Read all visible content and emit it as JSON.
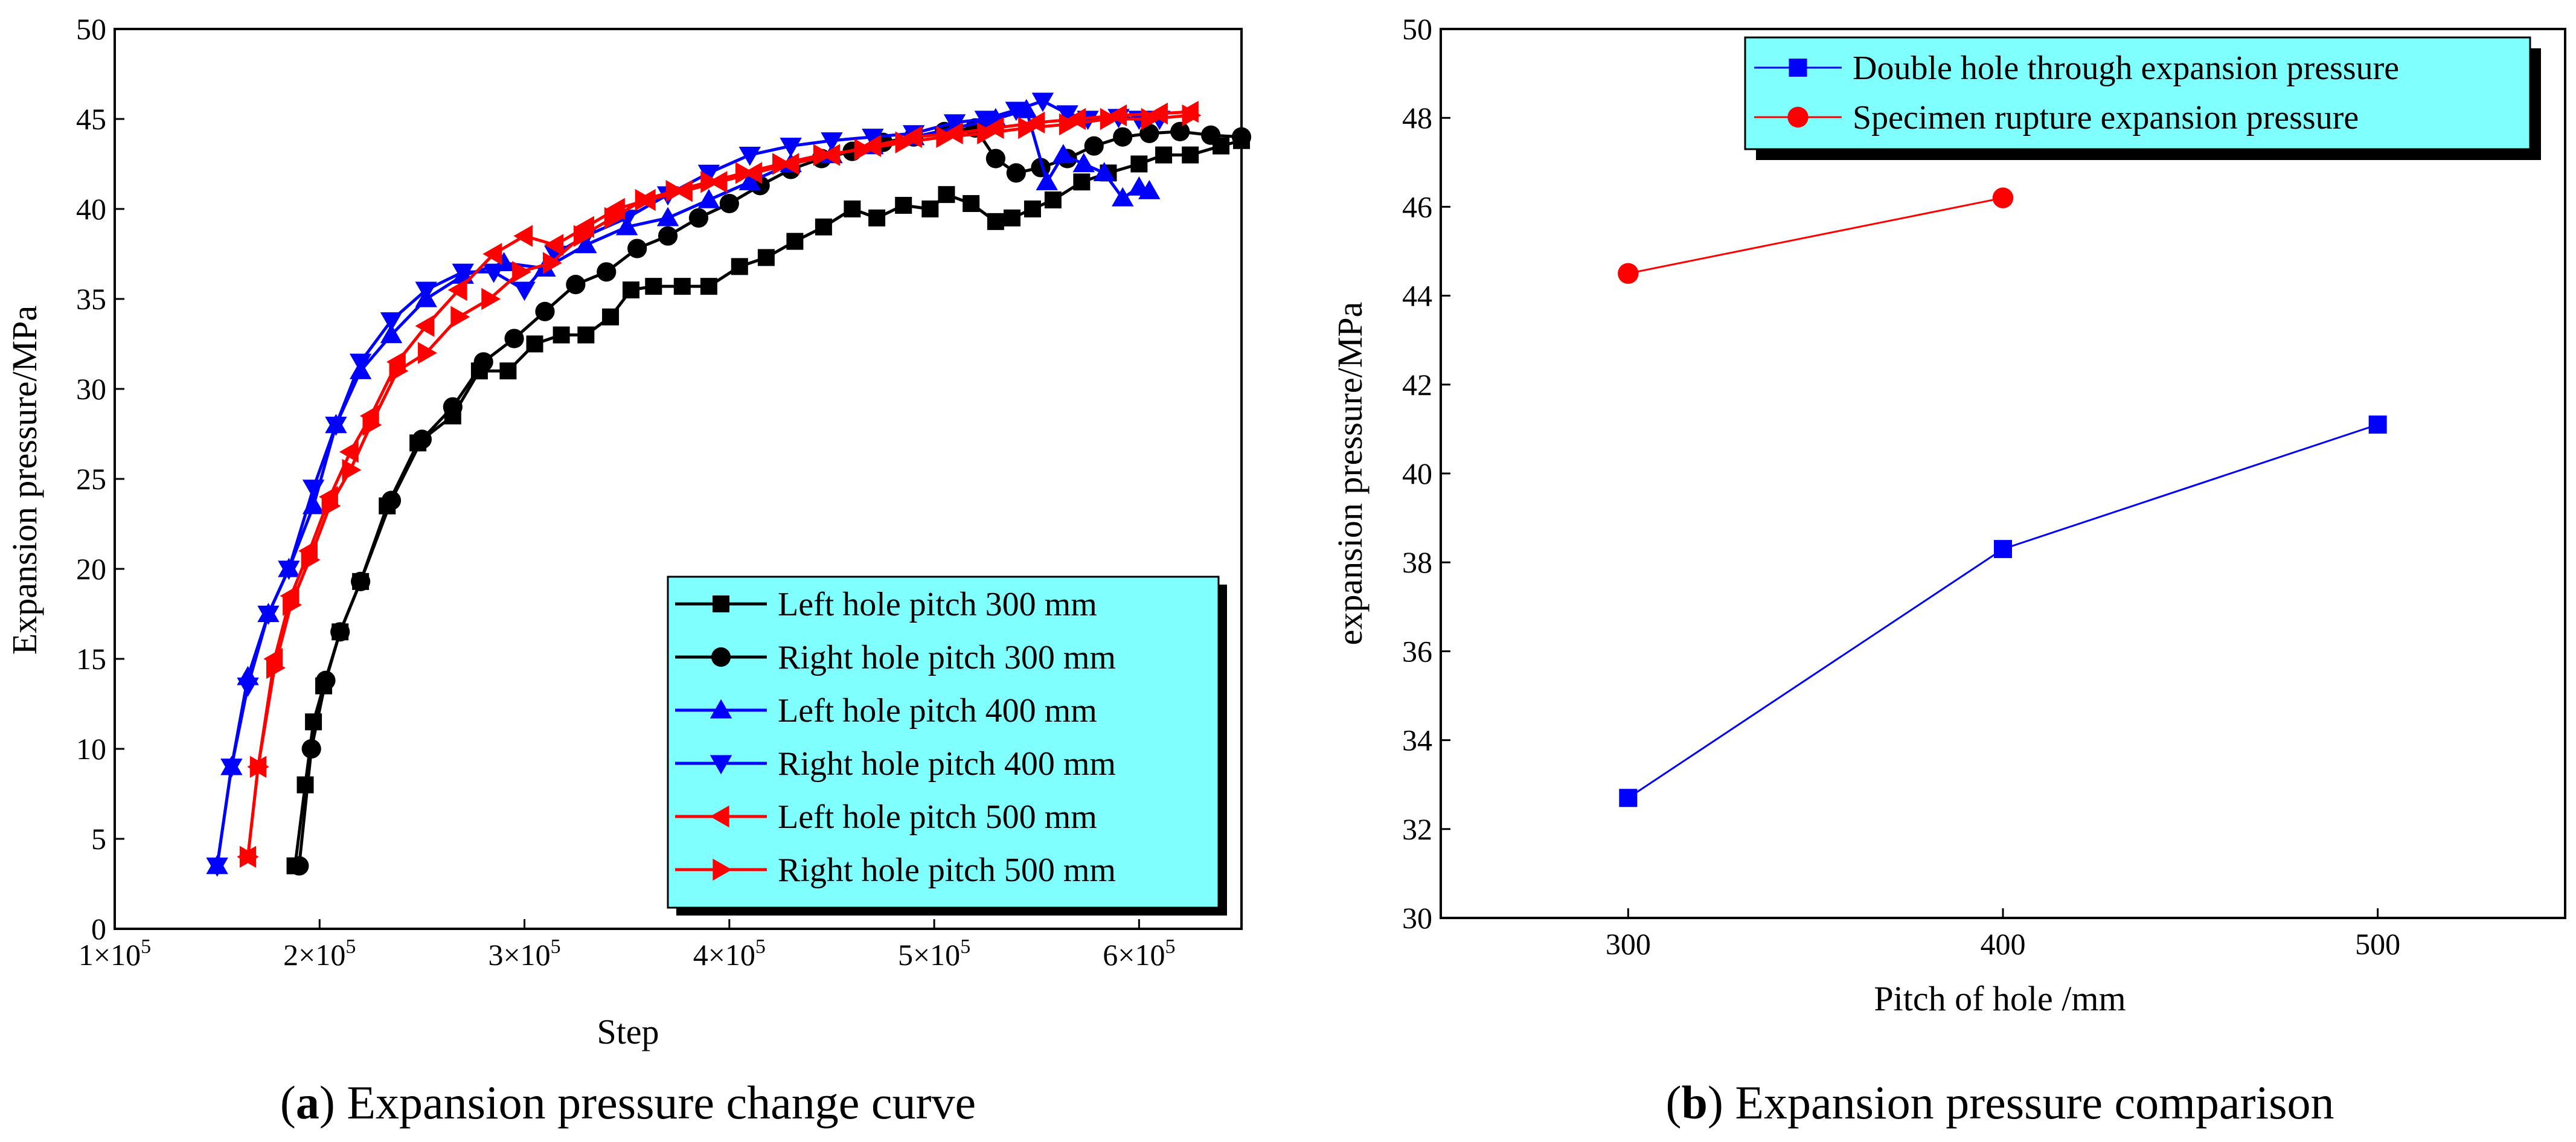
{
  "chart_data": [
    {
      "type": "line",
      "panel": "a",
      "caption_letter": "a",
      "caption_text": ") Expansion pressure change curve",
      "xlabel": "Step",
      "ylabel": "Expansion pressure/MPa",
      "xlim": [
        100000,
        650000
      ],
      "ylim": [
        0,
        50
      ],
      "xticks": [
        100000,
        200000,
        300000,
        400000,
        500000,
        600000
      ],
      "xtick_labels": [
        {
          "mantissa": "1×10",
          "exp": "5"
        },
        {
          "mantissa": "2×10",
          "exp": "5"
        },
        {
          "mantissa": "3×10",
          "exp": "5"
        },
        {
          "mantissa": "4×10",
          "exp": "5"
        },
        {
          "mantissa": "5×10",
          "exp": "5"
        },
        {
          "mantissa": "6×10",
          "exp": "5"
        }
      ],
      "yticks": [
        0,
        5,
        10,
        15,
        20,
        25,
        30,
        35,
        40,
        45,
        50
      ],
      "ytick_labels": [
        "0",
        "5",
        "10",
        "15",
        "20",
        "25",
        "30",
        "35",
        "40",
        "45",
        "50"
      ],
      "legend_position": "bottom-right",
      "series": [
        {
          "name": "Left hole pitch 300 mm",
          "color": "#000000",
          "marker": "square",
          "x": [
            188000,
            193000,
            197000,
            202000,
            210000,
            220000,
            233000,
            248000,
            265000,
            278000,
            292000,
            305000,
            318000,
            330000,
            342000,
            352000,
            363000,
            377000,
            390000,
            405000,
            418000,
            432000,
            446000,
            460000,
            472000,
            485000,
            498000,
            506000,
            518000,
            530000,
            538000,
            548000,
            558000,
            572000,
            585000,
            600000,
            612000,
            625000,
            640000,
            650000
          ],
          "y": [
            3.5,
            8,
            11.5,
            13.5,
            16.5,
            19.3,
            23.5,
            27,
            28.5,
            31,
            31,
            32.5,
            33,
            33,
            34,
            35.5,
            35.7,
            35.7,
            35.7,
            36.8,
            37.3,
            38.2,
            39,
            40,
            39.5,
            40.2,
            40,
            40.8,
            40.3,
            39.3,
            39.5,
            40,
            40.5,
            41.5,
            42,
            42.5,
            43,
            43,
            43.5,
            43.8
          ]
        },
        {
          "name": "Right hole pitch  300 mm",
          "color": "#000000",
          "marker": "circle",
          "x": [
            190000,
            196000,
            203000,
            210000,
            220000,
            235000,
            250000,
            265000,
            280000,
            295000,
            310000,
            325000,
            340000,
            355000,
            370000,
            385000,
            400000,
            415000,
            430000,
            445000,
            460000,
            475000,
            490000,
            505000,
            520000,
            530000,
            540000,
            552000,
            565000,
            578000,
            592000,
            605000,
            620000,
            635000,
            650000
          ],
          "y": [
            3.5,
            10,
            13.8,
            16.5,
            19.3,
            23.8,
            27.2,
            29,
            31.5,
            32.8,
            34.3,
            35.8,
            36.5,
            37.8,
            38.5,
            39.5,
            40.3,
            41.3,
            42.2,
            42.8,
            43.2,
            43.7,
            44,
            44.3,
            44.5,
            42.8,
            42,
            42.3,
            42.8,
            43.5,
            44,
            44.2,
            44.3,
            44.1,
            44
          ]
        },
        {
          "name": "Left hole pitch 400 mm",
          "color": "#0000ff",
          "marker": "triangle-up",
          "x": [
            150000,
            157000,
            165000,
            175000,
            185000,
            197000,
            208000,
            220000,
            235000,
            252000,
            270000,
            290000,
            310000,
            330000,
            350000,
            370000,
            390000,
            410000,
            430000,
            450000,
            470000,
            490000,
            510000,
            530000,
            545000,
            555000,
            563000,
            573000,
            583000,
            592000,
            600000,
            605000
          ],
          "y": [
            3.5,
            9,
            14,
            17.5,
            20,
            23.5,
            28,
            31,
            33,
            35,
            36.3,
            37,
            36.7,
            38,
            39,
            39.5,
            40.5,
            41.5,
            42.5,
            43,
            43.5,
            44,
            44.5,
            45,
            45.5,
            41.5,
            43,
            42.5,
            42,
            40.6,
            41.2,
            41
          ]
        },
        {
          "name": "Right hole pitch  400 mm",
          "color": "#0000ff",
          "marker": "triangle-down",
          "x": [
            150000,
            157000,
            165000,
            175000,
            185000,
            197000,
            208000,
            220000,
            235000,
            252000,
            270000,
            285000,
            300000,
            315000,
            330000,
            350000,
            370000,
            390000,
            410000,
            430000,
            450000,
            470000,
            490000,
            510000,
            525000,
            540000,
            553000,
            565000,
            575000,
            590000,
            600000,
            610000
          ],
          "y": [
            3.5,
            9,
            13.5,
            17.5,
            20,
            24.5,
            28,
            31.5,
            33.8,
            35.5,
            36.5,
            36.5,
            35.5,
            37.5,
            38.5,
            39.5,
            40.8,
            42,
            43,
            43.5,
            43.8,
            44,
            44.2,
            44.8,
            45,
            45.5,
            46,
            45.3,
            45,
            45.1,
            45,
            45
          ]
        },
        {
          "name": "Left hole pitch 500 mm",
          "color": "#ff0000",
          "marker": "triangle-left",
          "x": [
            165000,
            170000,
            178000,
            186000,
            195000,
            205000,
            215000,
            225000,
            238000,
            252000,
            268000,
            285000,
            300000,
            315000,
            330000,
            345000,
            360000,
            378000,
            395000,
            412000,
            430000,
            450000,
            470000,
            490000,
            510000,
            530000,
            550000,
            570000,
            590000,
            610000,
            625000
          ],
          "y": [
            4,
            9,
            15,
            18.5,
            21,
            24,
            26.5,
            28.5,
            31.5,
            33.5,
            35.5,
            37.5,
            38.5,
            38,
            39,
            40,
            40.5,
            41,
            41.5,
            42,
            42.5,
            43,
            43.5,
            44,
            44.2,
            44.5,
            44.8,
            45,
            45.2,
            45.3,
            45.4
          ]
        },
        {
          "name": "Right hole pitch  500 mm",
          "color": "#ff0000",
          "marker": "triangle-right",
          "x": [
            165000,
            170000,
            178000,
            186000,
            195000,
            205000,
            215000,
            225000,
            238000,
            252000,
            268000,
            283000,
            298000,
            313000,
            328000,
            343000,
            358000,
            373000,
            390000,
            407000,
            425000,
            445000,
            465000,
            485000,
            505000,
            525000,
            545000,
            565000,
            585000,
            605000,
            625000
          ],
          "y": [
            4,
            9,
            14.5,
            18,
            20.5,
            23.5,
            25.5,
            28,
            31,
            32,
            34,
            35,
            36.5,
            37,
            38.5,
            39.5,
            40.5,
            41,
            41.5,
            42,
            42.5,
            43,
            43.3,
            43.7,
            44,
            44.2,
            44.5,
            44.7,
            45,
            45,
            45.2
          ]
        }
      ]
    },
    {
      "type": "line",
      "panel": "b",
      "caption_letter": "b",
      "caption_text": ") Expansion pressure comparison",
      "xlabel": "Pitch of hole /mm",
      "ylabel": "expansion pressure/MPa",
      "categories": [
        "300",
        "400",
        "500"
      ],
      "xlim": [
        250,
        550
      ],
      "ylim": [
        30,
        50
      ],
      "yticks": [
        30,
        32,
        34,
        36,
        38,
        40,
        42,
        44,
        46,
        48,
        50
      ],
      "ytick_labels": [
        "30",
        "32",
        "34",
        "36",
        "38",
        "40",
        "42",
        "44",
        "46",
        "48",
        "50"
      ],
      "legend_position": "top-right",
      "series": [
        {
          "name": "Double hole through expansion pressure",
          "color": "#0000ff",
          "marker": "square",
          "x": [
            300,
            400,
            500
          ],
          "y": [
            32.7,
            38.3,
            41.1
          ]
        },
        {
          "name": "Specimen rupture expansion pressure",
          "color": "#ff0000",
          "marker": "circle",
          "x": [
            300,
            400
          ],
          "y": [
            44.5,
            46.2
          ]
        }
      ]
    }
  ],
  "colors": {
    "legend_fill": "#80ffff",
    "axis": "#000000"
  }
}
